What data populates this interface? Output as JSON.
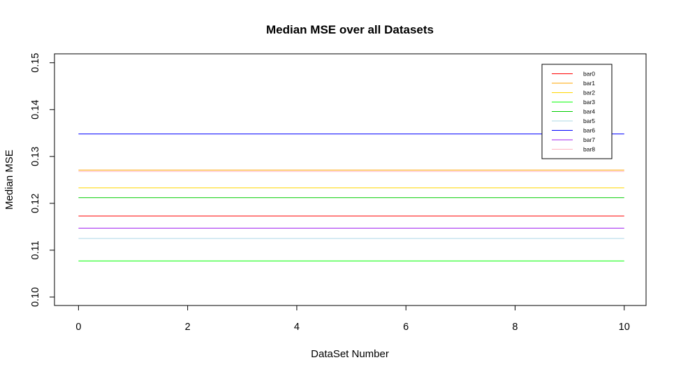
{
  "chart_data": {
    "type": "line",
    "title": "Median MSE over all Datasets",
    "xlabel": "DataSet Number",
    "ylabel": "Median MSE",
    "xlim": [
      -0.44,
      10.4
    ],
    "ylim": [
      0.0982,
      0.1519
    ],
    "x_ticks": [
      "0",
      "2",
      "4",
      "6",
      "8",
      "10"
    ],
    "y_ticks": [
      "0.10",
      "0.11",
      "0.12",
      "0.13",
      "0.14",
      "0.15"
    ],
    "grid": false,
    "legend_position": "top-right",
    "x": [
      0,
      10
    ],
    "series": [
      {
        "name": "bar0",
        "color": "#FF0000",
        "values": [
          0.1173,
          0.1173
        ]
      },
      {
        "name": "bar1",
        "color": "#FFA500",
        "values": [
          0.1271,
          0.1271
        ]
      },
      {
        "name": "bar2",
        "color": "#FFD700",
        "values": [
          0.1233,
          0.1233
        ]
      },
      {
        "name": "bar3",
        "color": "#00FF00",
        "values": [
          0.1077,
          0.1077
        ]
      },
      {
        "name": "bar4",
        "color": "#00CD00",
        "values": [
          0.1212,
          0.1212
        ]
      },
      {
        "name": "bar5",
        "color": "#ADD8E6",
        "values": [
          0.1125,
          0.1125
        ]
      },
      {
        "name": "bar6",
        "color": "#0000FF",
        "values": [
          0.1348,
          0.1348
        ]
      },
      {
        "name": "bar7",
        "color": "#A020F0",
        "values": [
          0.1147,
          0.1147
        ]
      },
      {
        "name": "bar8",
        "color": "#FFB6C1",
        "values": [
          0.1268,
          0.1268
        ]
      }
    ]
  }
}
